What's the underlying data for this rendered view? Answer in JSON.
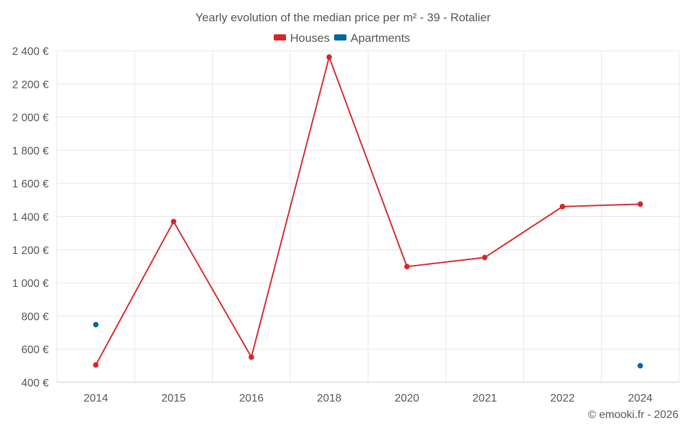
{
  "chart_data": {
    "type": "line",
    "title": "Yearly evolution of the median price per m² - 39 - Rotalier",
    "categories": [
      "2014",
      "2015",
      "2016",
      "2018",
      "2020",
      "2021",
      "2022",
      "2024"
    ],
    "series": [
      {
        "name": "Houses",
        "color": "#d62728",
        "values": [
          505,
          1370,
          552,
          2362,
          1098,
          1153,
          1460,
          1475
        ]
      },
      {
        "name": "Apartments",
        "color": "#03679c",
        "values": [
          748,
          null,
          null,
          null,
          null,
          null,
          null,
          500
        ]
      }
    ],
    "ylim": [
      400,
      2400
    ],
    "yticks": [
      400,
      600,
      800,
      1000,
      1200,
      1400,
      1600,
      1800,
      2000,
      2200,
      2400
    ],
    "ytick_labels": [
      "400 €",
      "600 €",
      "800 €",
      "1 000 €",
      "1 200 €",
      "1 400 €",
      "1 600 €",
      "1 800 €",
      "2 000 €",
      "2 200 €",
      "2 400 €"
    ],
    "legend_position": "top-center",
    "grid": true
  },
  "credit": "© emooki.fr - 2026"
}
